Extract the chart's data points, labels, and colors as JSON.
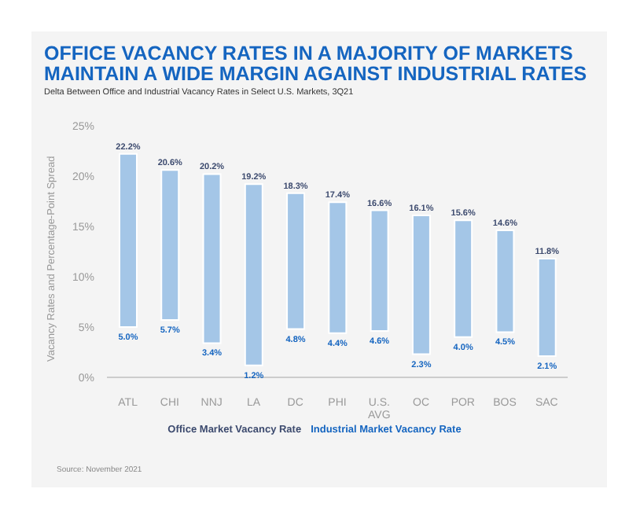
{
  "chart_data": {
    "type": "bar",
    "title": "OFFICE VACANCY RATES IN A MAJORITY OF MARKETS MAINTAIN A WIDE MARGIN AGAINST INDUSTRIAL RATES",
    "subtitle": "Delta Between Office and Industrial Vacancy Rates in Select U.S. Markets, 3Q21",
    "ylabel": "Vacancy  Rates and Percentage-Point Spread",
    "categories": [
      "ATL",
      "CHI",
      "NNJ",
      "LA",
      "DC",
      "PHI",
      "U.S. AVG",
      "OC",
      "POR",
      "BOS",
      "SAC"
    ],
    "base": [
      5.0,
      5.7,
      3.4,
      1.2,
      4.8,
      4.4,
      4.6,
      2.3,
      4.0,
      4.5,
      2.1
    ],
    "values": [
      17.2,
      14.9,
      16.8,
      18.0,
      13.5,
      13.0,
      12.0,
      13.8,
      11.6,
      10.1,
      9.7
    ],
    "color": "#a4c6e7",
    "value_labels": [
      "22.2%",
      "20.6%",
      "20.2%",
      "19.2%",
      "18.3%",
      "17.4%",
      "16.6%",
      "16.1%",
      "15.6%",
      "14.6%",
      "11.8%"
    ],
    "ylim": [
      0,
      25
    ],
    "yticks": [
      {
        "value": 0,
        "label": "0%"
      },
      {
        "value": 5,
        "label": "5%"
      },
      {
        "value": 10,
        "label": "10%"
      },
      {
        "value": 15,
        "label": "15%"
      },
      {
        "value": 20,
        "label": "20%"
      },
      {
        "value": 25,
        "label": "25%"
      }
    ],
    "grid": false,
    "annotations": [
      {
        "text": "5.0%",
        "x": "ATL",
        "y": 5.0
      },
      {
        "text": "5.7%",
        "x": "CHI",
        "y": 5.7
      },
      {
        "text": "3.4%",
        "x": "NNJ",
        "y": 3.4
      },
      {
        "text": "1.2%",
        "x": "LA",
        "y": 1.2
      },
      {
        "text": "4.8%",
        "x": "DC",
        "y": 4.8
      },
      {
        "text": "4.4%",
        "x": "PHI",
        "y": 4.4
      },
      {
        "text": "4.6%",
        "x": "U.S. AVG",
        "y": 4.6
      },
      {
        "text": "2.3%",
        "x": "OC",
        "y": 2.3
      },
      {
        "text": "4.0%",
        "x": "POR",
        "y": 4.0
      },
      {
        "text": "4.5%",
        "x": "BOS",
        "y": 4.5
      },
      {
        "text": "2.1%",
        "x": "SAC",
        "y": 2.1
      },
      "Office Market Vacancy Rate",
      "Industrial Market Vacancy Rate",
      "Source: November 2021"
    ]
  }
}
